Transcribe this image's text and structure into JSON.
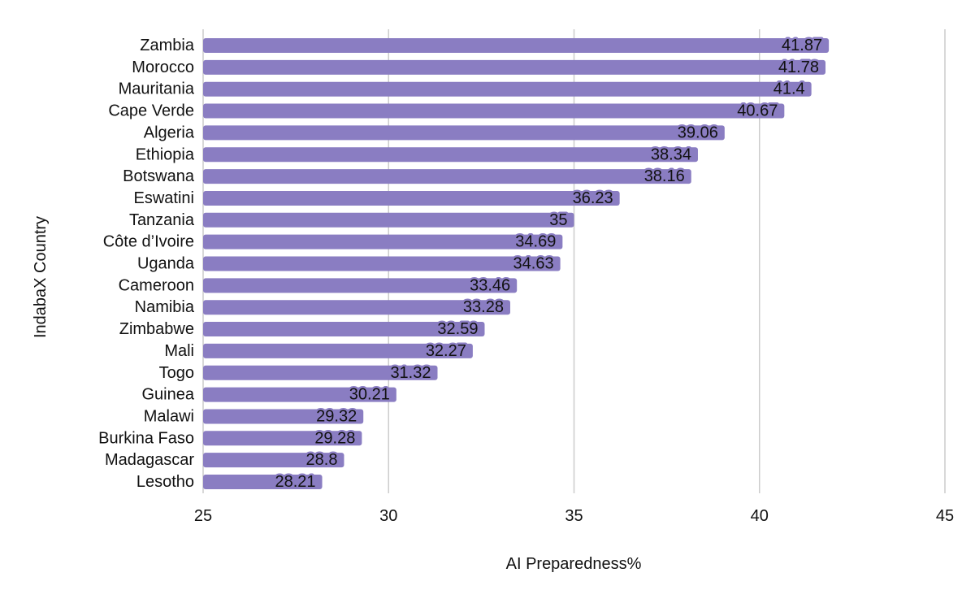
{
  "chart_data": {
    "type": "bar",
    "orientation": "horizontal",
    "title": "",
    "xlabel": "AI Preparedness%",
    "ylabel": "IndabaX Country",
    "xlim": [
      25,
      45
    ],
    "xticks": [
      25,
      30,
      35,
      40,
      45
    ],
    "grid": "vertical",
    "bar_color": "#8a7dc2",
    "categories": [
      "Zambia",
      "Morocco",
      "Mauritania",
      "Cape Verde",
      "Algeria",
      "Ethiopia",
      "Botswana",
      "Eswatini",
      "Tanzania",
      "Côte d’Ivoire",
      "Uganda",
      "Cameroon",
      "Namibia",
      "Zimbabwe",
      "Mali",
      "Togo",
      "Guinea",
      "Malawi",
      "Burkina Faso",
      "Madagascar",
      "Lesotho"
    ],
    "values": [
      41.87,
      41.78,
      41.4,
      40.67,
      39.06,
      38.34,
      38.16,
      36.23,
      35,
      34.69,
      34.63,
      33.46,
      33.28,
      32.59,
      32.27,
      31.32,
      30.21,
      29.32,
      29.28,
      28.8,
      28.21
    ],
    "value_labels": [
      "41.87",
      "41.78",
      "41.4",
      "40.67",
      "39.06",
      "38.34",
      "38.16",
      "36.23",
      "35",
      "34.69",
      "34.63",
      "33.46",
      "33.28",
      "32.59",
      "32.27",
      "31.32",
      "30.21",
      "29.32",
      "29.28",
      "28.8",
      "28.21"
    ]
  }
}
